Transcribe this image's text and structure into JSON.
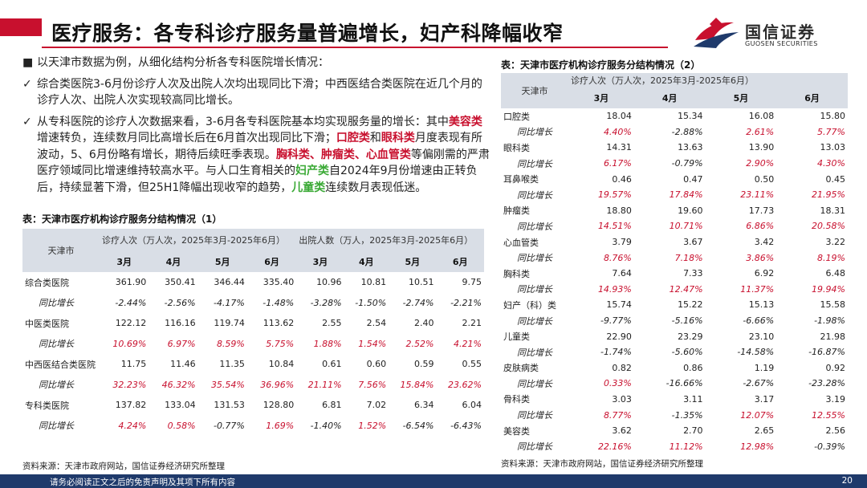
{
  "header": {
    "title": "医疗服务：各专科诊疗服务量普遍增长，妇产科降幅收窄",
    "logo_cn": "国信证券",
    "logo_en": "GUOSEN SECURITIES",
    "accent_color": "#c8102e",
    "logo_blue": "#1f3a6b"
  },
  "bullets": {
    "b1_mark": "■",
    "b1": "以天津市数据为例，从细化结构分析各专科医院增长情况：",
    "b2_mark": "✓",
    "b2": "综合类医院3-6月份诊疗人次及出院人次均出现同比下滑；中西医结合类医院在近几个月的诊疗人次、出院人次实现较高同比增长。",
    "b3_mark": "✓",
    "b3_parts": {
      "p1": "从专科医院的诊疗人次数据来看，3-6月各专科医院基本均实现服务量的增长：其中",
      "r1": "美容类",
      "p2": "增速转负，连续数月同比高增长后在6月首次出现同比下滑；",
      "r2": "口腔类",
      "p3": "和",
      "r3": "眼科类",
      "p4": "月度表现有所波动，5、6月份略有增长，期待后续旺季表现。",
      "r4": "胸科类、肿瘤类、心血管类",
      "p5": "等偏刚需的严肃医疗领域同比增速维持较高水平。与人口生育相关的",
      "g1": "妇产类",
      "p6": "自2024年9月份增速由正转负后，持续显著下滑，但25H1降幅出现收窄的趋势，",
      "g2": "儿童类",
      "p7": "连续数月表现低迷。"
    }
  },
  "table1": {
    "caption": "表：天津市医疗机构诊疗服务分结构情况（1）",
    "corner": "天津市",
    "group1": "诊疗人次（万人次，2025年3月-2025年6月）",
    "group2": "出院人数（万人，2025年3月-2025年6月）",
    "months": [
      "3月",
      "4月",
      "5月",
      "6月",
      "3月",
      "4月",
      "5月",
      "6月"
    ],
    "rows": [
      {
        "name": "综合类医院",
        "v": [
          "361.90",
          "350.41",
          "346.44",
          "335.40",
          "10.96",
          "10.81",
          "10.51",
          "9.75"
        ],
        "sub_label": "同比增长",
        "g": [
          "-2.44%",
          "-2.56%",
          "-4.17%",
          "-1.48%",
          "-3.28%",
          "-1.50%",
          "-2.74%",
          "-2.21%"
        ]
      },
      {
        "name": "中医类医院",
        "v": [
          "122.12",
          "116.16",
          "119.74",
          "113.62",
          "2.55",
          "2.54",
          "2.40",
          "2.21"
        ],
        "sub_label": "同比增长",
        "g": [
          "10.69%",
          "6.97%",
          "8.59%",
          "5.75%",
          "1.88%",
          "1.54%",
          "2.52%",
          "4.21%"
        ]
      },
      {
        "name": "中西医结合类医院",
        "v": [
          "11.75",
          "11.46",
          "11.35",
          "10.84",
          "0.61",
          "0.60",
          "0.59",
          "0.55"
        ],
        "sub_label": "同比增长",
        "g": [
          "32.23%",
          "46.32%",
          "35.54%",
          "36.96%",
          "21.11%",
          "7.56%",
          "15.84%",
          "23.62%"
        ]
      },
      {
        "name": "专科类医院",
        "v": [
          "137.82",
          "133.04",
          "131.53",
          "128.80",
          "6.81",
          "7.02",
          "6.34",
          "6.04"
        ],
        "sub_label": "同比增长",
        "g": [
          "4.24%",
          "0.58%",
          "-0.77%",
          "1.69%",
          "-1.40%",
          "1.52%",
          "-6.54%",
          "-6.43%"
        ]
      }
    ],
    "source": "资料来源：天津市政府网站，国信证券经济研究所整理"
  },
  "table2": {
    "caption": "表：天津市医疗机构诊疗服务分结构情况（2）",
    "corner": "天津市",
    "group1": "诊疗人次（万人次，2025年3月-2025年6月）",
    "months": [
      "3月",
      "4月",
      "5月",
      "6月"
    ],
    "rows": [
      {
        "name": "口腔类",
        "v": [
          "18.04",
          "15.34",
          "16.08",
          "15.80"
        ],
        "sub_label": "同比增长",
        "g": [
          "4.40%",
          "-2.88%",
          "2.61%",
          "5.77%"
        ]
      },
      {
        "name": "眼科类",
        "v": [
          "14.31",
          "13.63",
          "13.90",
          "13.03"
        ],
        "sub_label": "同比增长",
        "g": [
          "6.17%",
          "-0.79%",
          "2.90%",
          "4.30%"
        ]
      },
      {
        "name": "耳鼻喉类",
        "v": [
          "0.46",
          "0.47",
          "0.50",
          "0.45"
        ],
        "sub_label": "同比增长",
        "g": [
          "19.57%",
          "17.84%",
          "23.11%",
          "21.95%"
        ]
      },
      {
        "name": "肿瘤类",
        "v": [
          "18.80",
          "19.60",
          "17.73",
          "18.31"
        ],
        "sub_label": "同比增长",
        "g": [
          "14.51%",
          "10.71%",
          "6.86%",
          "20.58%"
        ]
      },
      {
        "name": "心血管类",
        "v": [
          "3.79",
          "3.67",
          "3.42",
          "3.22"
        ],
        "sub_label": "同比增长",
        "g": [
          "8.76%",
          "7.18%",
          "3.86%",
          "8.19%"
        ]
      },
      {
        "name": "胸科类",
        "v": [
          "7.64",
          "7.33",
          "6.92",
          "6.48"
        ],
        "sub_label": "同比增长",
        "g": [
          "14.93%",
          "12.47%",
          "11.37%",
          "19.94%"
        ]
      },
      {
        "name": "妇产（科）类",
        "v": [
          "15.74",
          "15.22",
          "15.13",
          "15.58"
        ],
        "sub_label": "同比增长",
        "g": [
          "-9.77%",
          "-5.16%",
          "-6.66%",
          "-1.98%"
        ]
      },
      {
        "name": "儿童类",
        "v": [
          "22.90",
          "23.29",
          "23.10",
          "21.98"
        ],
        "sub_label": "同比增长",
        "g": [
          "-1.74%",
          "-5.60%",
          "-14.58%",
          "-16.87%"
        ]
      },
      {
        "name": "皮肤病类",
        "v": [
          "0.82",
          "0.86",
          "1.19",
          "0.92"
        ],
        "sub_label": "同比增长",
        "g": [
          "0.33%",
          "-16.66%",
          "-2.67%",
          "-23.28%"
        ]
      },
      {
        "name": "骨科类",
        "v": [
          "3.03",
          "3.11",
          "3.17",
          "3.19"
        ],
        "sub_label": "同比增长",
        "g": [
          "8.77%",
          "-1.35%",
          "12.07%",
          "12.55%"
        ]
      },
      {
        "name": "美容类",
        "v": [
          "3.62",
          "2.70",
          "2.65",
          "2.56"
        ],
        "sub_label": "同比增长",
        "g": [
          "22.16%",
          "11.12%",
          "12.98%",
          "-0.39%"
        ]
      }
    ],
    "source": "资料来源：天津市政府网站，国信证券经济研究所整理"
  },
  "footer": {
    "disclaimer": "请务必阅读正文之后的免责声明及其项下所有内容",
    "page": "20"
  }
}
